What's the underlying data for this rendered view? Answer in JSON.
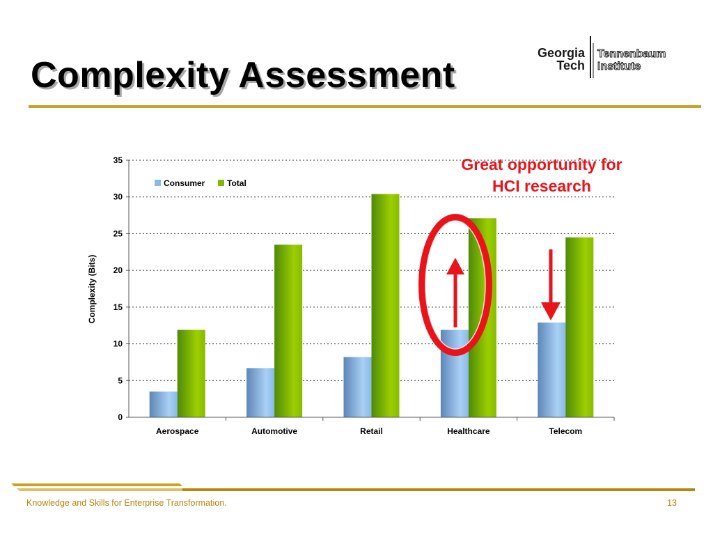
{
  "slide": {
    "title": "Complexity Assessment",
    "annotation_line1": "Great opportunity for",
    "annotation_line2": "HCI research",
    "footer_text": "Knowledge and Skills for Enterprise Transformation.",
    "page_number": "13",
    "accent_color": "#c9a227",
    "annotation_color": "#e8141a"
  },
  "logo": {
    "left_line1": "Georgia",
    "left_line2": "Tech",
    "right_line1": "Tennenbaum",
    "right_line2": "Institute"
  },
  "chart_data": {
    "type": "bar",
    "categories": [
      "Aerospace",
      "Automotive",
      "Retail",
      "Healthcare",
      "Telecom"
    ],
    "series": [
      {
        "name": "Consumer",
        "values": [
          3.5,
          6.7,
          8.2,
          11.9,
          12.9
        ],
        "color": "#8ab9e6"
      },
      {
        "name": "Total",
        "values": [
          11.9,
          23.5,
          30.4,
          27.1,
          24.5
        ],
        "color": "#7fba00"
      }
    ],
    "ylabel": "Complexity (Bits)",
    "xlabel": "",
    "ylim": [
      0,
      35
    ],
    "yticks": [
      0,
      5,
      10,
      15,
      20,
      25,
      30,
      35
    ],
    "grid": true,
    "legend_position": "top-left"
  }
}
